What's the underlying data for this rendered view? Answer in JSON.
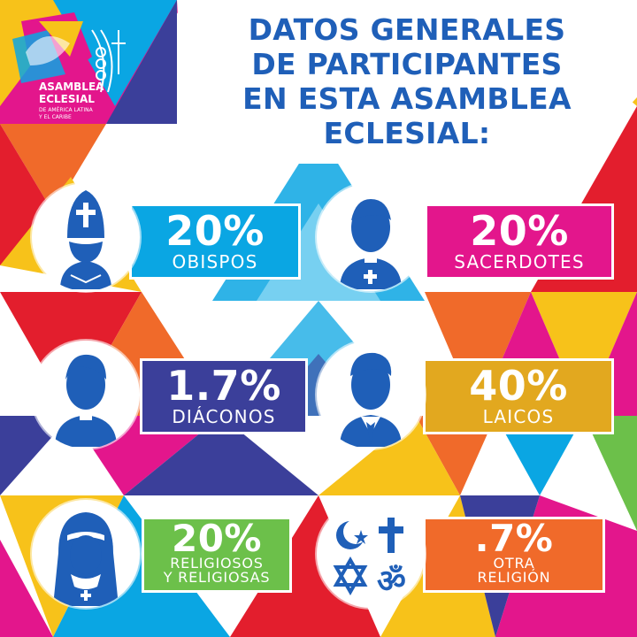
{
  "logo": {
    "line1": "ASAMBLEA",
    "line2": "ECLESIAL",
    "line3": "DE AMÉRICA LATINA",
    "line4": "Y EL CARIBE"
  },
  "title": {
    "line1": "DATOS GENERALES",
    "line2": "DE PARTICIPANTES",
    "line3": "EN ESTA ASAMBLEA",
    "line4": "ECLESIAL:"
  },
  "stats": [
    {
      "percent": "20%",
      "category": "OBISPOS",
      "color": "#0aa6e3",
      "icon": "bishop-icon"
    },
    {
      "percent": "20%",
      "category": "SACERDOTES",
      "color": "#e3168c",
      "icon": "priest-icon"
    },
    {
      "percent": "1.7%",
      "category": "DIÁCONOS",
      "color": "#3b3f9a",
      "icon": "deacon-icon"
    },
    {
      "percent": "40%",
      "category": "LAICOS",
      "color": "#e2a81f",
      "icon": "layperson-icon"
    },
    {
      "percent": "20%",
      "category_line1": "RELIGIOSOS",
      "category_line2": "Y RELIGIOSAS",
      "color": "#6cc04a",
      "icon": "nun-icon"
    },
    {
      "percent": ".7%",
      "category_line1": "OTRA",
      "category_line2": "RELIGIÓN",
      "color": "#f06a2a",
      "icon": "religious-symbols-icon"
    }
  ],
  "colors": {
    "title": "#1f5fb8",
    "icon": "#1f5fb8"
  }
}
